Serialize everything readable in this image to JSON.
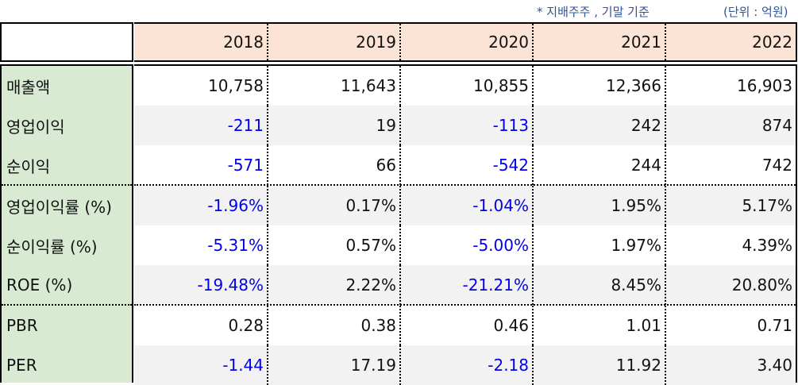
{
  "notes": {
    "basis": "* 지배주주 , 기말 기준",
    "unit": "(단위 : 억원)"
  },
  "years": [
    "2018",
    "2019",
    "2020",
    "2021",
    "2022"
  ],
  "rows": [
    {
      "label": "매출액",
      "values": [
        "10,758",
        "11,643",
        "10,855",
        "12,366",
        "16,903"
      ]
    },
    {
      "label": "영업이익",
      "values": [
        "-211",
        "19",
        "-113",
        "242",
        "874"
      ]
    },
    {
      "label": "순이익",
      "values": [
        "-571",
        "66",
        "-542",
        "244",
        "742"
      ]
    },
    {
      "label": "영업이익률 (%)",
      "values": [
        "-1.96%",
        "0.17%",
        "-1.04%",
        "1.95%",
        "5.17%"
      ]
    },
    {
      "label": "순이익률 (%)",
      "values": [
        "-5.31%",
        "0.57%",
        "-5.00%",
        "1.97%",
        "4.39%"
      ]
    },
    {
      "label": "ROE (%)",
      "values": [
        "-19.48%",
        "2.22%",
        "-21.21%",
        "8.45%",
        "20.80%"
      ]
    },
    {
      "label": "PBR",
      "values": [
        "0.28",
        "0.38",
        "0.46",
        "1.01",
        "0.71"
      ]
    },
    {
      "label": "PER",
      "values": [
        "-1.44",
        "17.19",
        "-2.18",
        "11.92",
        "3.40"
      ]
    }
  ],
  "colors": {
    "header_bg": "#fbe4d5",
    "label_bg": "#d9ead3",
    "alt_row_bg": "#f2f2f2",
    "negative": "#0000ee",
    "note": "#2f5496"
  }
}
